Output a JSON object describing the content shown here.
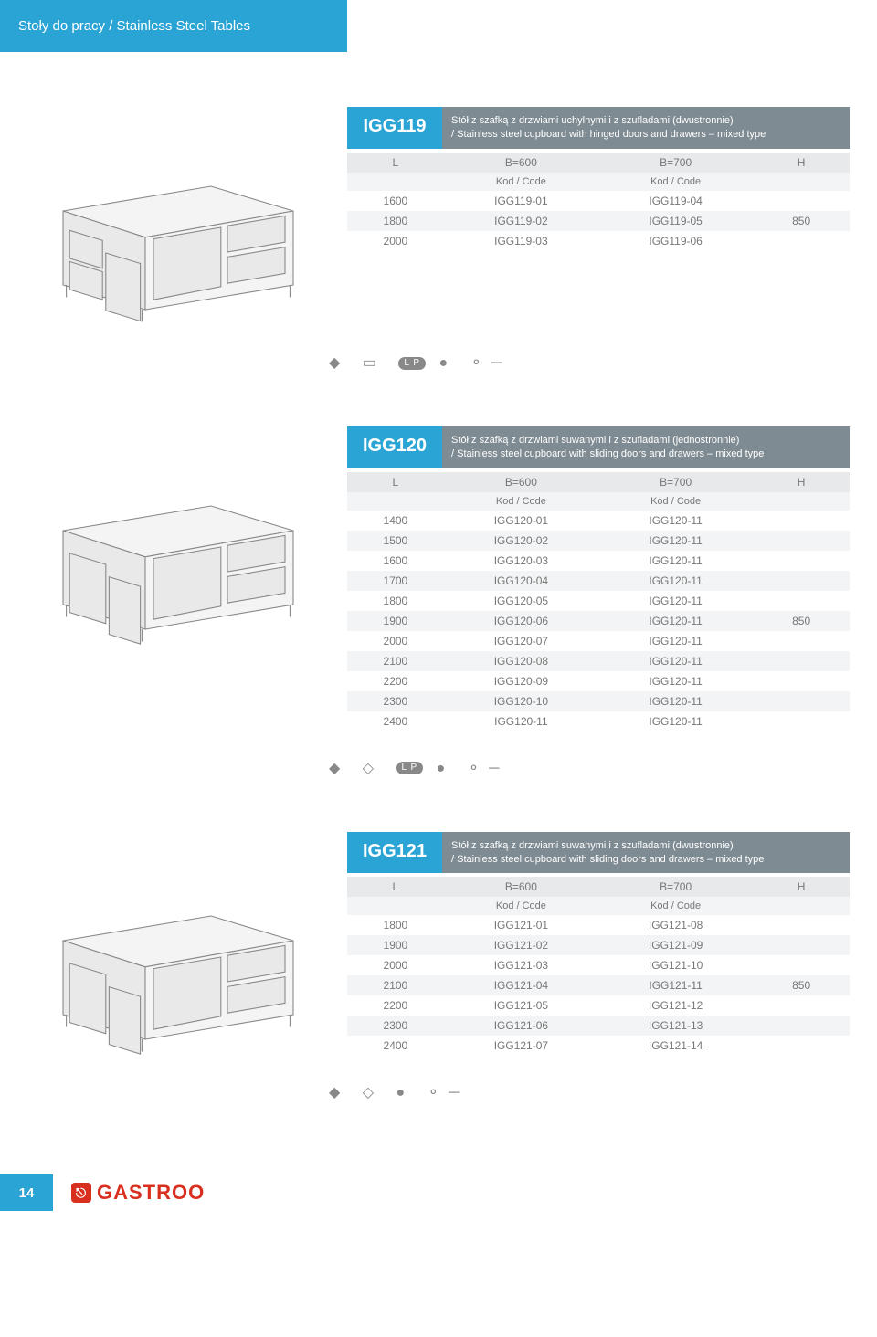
{
  "header": {
    "title": "Stoły do pracy / Stainless Steel Tables"
  },
  "products": [
    {
      "code": "IGG119",
      "desc": "Stół z szafką z drzwiami uchylnymi  i z szufladami (dwustronnie)\n/ Stainless steel cupboard with hinged doors and drawers – mixed type",
      "columns": {
        "L": "L",
        "b600": "B=600",
        "b700": "B=700",
        "H": "H"
      },
      "subhead": {
        "b600": "Kod / Code",
        "b700": "Kod / Code"
      },
      "rows": [
        {
          "L": "1600",
          "b600": "IGG119-01",
          "b700": "IGG119-04",
          "H": ""
        },
        {
          "L": "1800",
          "b600": "IGG119-02",
          "b700": "IGG119-05",
          "H": "850"
        },
        {
          "L": "2000",
          "b600": "IGG119-03",
          "b700": "IGG119-06",
          "H": ""
        }
      ],
      "icons": [
        "◆",
        "▭",
        "LP",
        "●",
        "⚬─"
      ]
    },
    {
      "code": "IGG120",
      "desc": "Stół z szafką z drzwiami suwanymi i z szufladami (jednostronnie)\n/ Stainless steel cupboard with sliding doors and drawers – mixed type",
      "columns": {
        "L": "L",
        "b600": "B=600",
        "b700": "B=700",
        "H": "H"
      },
      "subhead": {
        "b600": "Kod / Code",
        "b700": "Kod / Code"
      },
      "rows": [
        {
          "L": "1400",
          "b600": "IGG120-01",
          "b700": "IGG120-11",
          "H": ""
        },
        {
          "L": "1500",
          "b600": "IGG120-02",
          "b700": "IGG120-11",
          "H": ""
        },
        {
          "L": "1600",
          "b600": "IGG120-03",
          "b700": "IGG120-11",
          "H": ""
        },
        {
          "L": "1700",
          "b600": "IGG120-04",
          "b700": "IGG120-11",
          "H": ""
        },
        {
          "L": "1800",
          "b600": "IGG120-05",
          "b700": "IGG120-11",
          "H": ""
        },
        {
          "L": "1900",
          "b600": "IGG120-06",
          "b700": "IGG120-11",
          "H": "850"
        },
        {
          "L": "2000",
          "b600": "IGG120-07",
          "b700": "IGG120-11",
          "H": ""
        },
        {
          "L": "2100",
          "b600": "IGG120-08",
          "b700": "IGG120-11",
          "H": ""
        },
        {
          "L": "2200",
          "b600": "IGG120-09",
          "b700": "IGG120-11",
          "H": ""
        },
        {
          "L": "2300",
          "b600": "IGG120-10",
          "b700": "IGG120-11",
          "H": ""
        },
        {
          "L": "2400",
          "b600": "IGG120-11",
          "b700": "IGG120-11",
          "H": ""
        }
      ],
      "icons": [
        "◆",
        "◇",
        "LP",
        "●",
        "⚬─"
      ]
    },
    {
      "code": "IGG121",
      "desc": "Stół z szafką z drzwiami suwanymi  i z szufladami (dwustronnie)\n/ Stainless steel cupboard with sliding doors and drawers – mixed type",
      "columns": {
        "L": "L",
        "b600": "B=600",
        "b700": "B=700",
        "H": "H"
      },
      "subhead": {
        "b600": "Kod / Code",
        "b700": "Kod / Code"
      },
      "rows": [
        {
          "L": "1800",
          "b600": "IGG121-01",
          "b700": "IGG121-08",
          "H": ""
        },
        {
          "L": "1900",
          "b600": "IGG121-02",
          "b700": "IGG121-09",
          "H": ""
        },
        {
          "L": "2000",
          "b600": "IGG121-03",
          "b700": "IGG121-10",
          "H": ""
        },
        {
          "L": "2100",
          "b600": "IGG121-04",
          "b700": "IGG121-11",
          "H": "850"
        },
        {
          "L": "2200",
          "b600": "IGG121-05",
          "b700": "IGG121-12",
          "H": ""
        },
        {
          "L": "2300",
          "b600": "IGG121-06",
          "b700": "IGG121-13",
          "H": ""
        },
        {
          "L": "2400",
          "b600": "IGG121-07",
          "b700": "IGG121-14",
          "H": ""
        }
      ],
      "icons": [
        "◆",
        "◇",
        "●",
        "⚬─"
      ]
    }
  ],
  "footer": {
    "page": "14",
    "brand": "GASTROO"
  },
  "style": {
    "accent": "#2aa4d4",
    "desc_bg": "#7f8b92",
    "stripe_odd": "#ffffff",
    "stripe_even": "#f3f4f5",
    "text_color": "#777",
    "brand_color": "#d92f1f"
  },
  "illustration": {
    "stroke": "#888888",
    "fill": "#e9e9e9",
    "fill_light": "#f4f4f4"
  }
}
